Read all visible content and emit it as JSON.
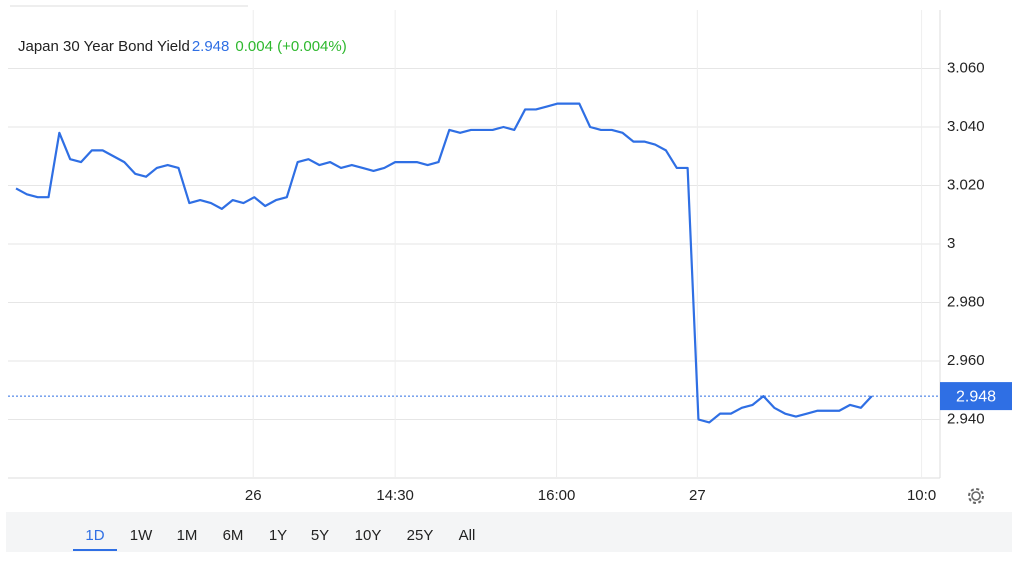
{
  "chart_data": {
    "type": "line",
    "title": "Japan 30 Year Bond Yield",
    "current": 2.948,
    "change": 0.004,
    "change_pct": "(+0.004%)",
    "x": [
      0,
      1,
      2,
      3,
      4,
      5,
      6,
      7,
      8,
      9,
      10,
      11,
      12,
      13,
      14,
      15,
      16,
      17,
      18,
      19,
      20,
      21,
      22,
      23,
      24,
      25,
      26,
      27,
      28,
      29,
      30,
      31,
      32,
      33,
      34,
      35,
      36,
      37,
      38,
      39,
      40,
      41,
      42,
      43,
      44,
      45,
      46,
      47,
      48,
      49,
      50,
      51,
      52,
      53,
      54,
      55,
      56,
      57,
      58,
      59,
      60,
      61,
      62,
      63,
      64,
      65,
      66,
      67,
      68,
      69,
      70,
      71,
      72,
      73,
      74,
      75,
      76,
      77,
      78,
      79
    ],
    "series": [
      {
        "name": "Japan 30 Year Bond Yield",
        "color": "#2f6fe4",
        "values": [
          3.019,
          3.017,
          3.016,
          3.016,
          3.038,
          3.029,
          3.028,
          3.032,
          3.032,
          3.03,
          3.028,
          3.024,
          3.023,
          3.026,
          3.027,
          3.026,
          3.014,
          3.015,
          3.014,
          3.012,
          3.015,
          3.014,
          3.016,
          3.013,
          3.015,
          3.016,
          3.028,
          3.029,
          3.027,
          3.028,
          3.026,
          3.027,
          3.026,
          3.025,
          3.026,
          3.028,
          3.028,
          3.028,
          3.027,
          3.028,
          3.039,
          3.038,
          3.039,
          3.039,
          3.039,
          3.04,
          3.039,
          3.046,
          3.046,
          3.047,
          3.048,
          3.048,
          3.048,
          3.04,
          3.039,
          3.039,
          3.038,
          3.035,
          3.035,
          3.034,
          3.032,
          3.026,
          3.026,
          2.94,
          2.939,
          2.942,
          2.942,
          2.944,
          2.945,
          2.948,
          2.944,
          2.942,
          2.941,
          2.942,
          2.943,
          2.943,
          2.943,
          2.945,
          2.944,
          2.948
        ]
      }
    ],
    "xlim": [
      -0.74,
      85.3
    ],
    "xticks": [
      {
        "value": 21.9,
        "label": "26"
      },
      {
        "value": 35,
        "label": "14:30"
      },
      {
        "value": 49.9,
        "label": "16:00"
      },
      {
        "value": 62.9,
        "label": "27"
      },
      {
        "value": 83.6,
        "label": "10:0"
      }
    ],
    "ylim": [
      2.92,
      3.08
    ],
    "yticks": [
      {
        "value": 2.94,
        "label": "2.940"
      },
      {
        "value": 2.96,
        "label": "2.960"
      },
      {
        "value": 2.98,
        "label": "2.980"
      },
      3,
      {
        "value": 3.02,
        "label": "3.020"
      },
      {
        "value": 3.04,
        "label": "3.040"
      },
      {
        "value": 3.06,
        "label": "3.060"
      }
    ],
    "grid": true,
    "ranges": [
      "1D",
      "1W",
      "1M",
      "6M",
      "1Y",
      "5Y",
      "10Y",
      "25Y",
      "All"
    ],
    "selected_range": "1D"
  }
}
